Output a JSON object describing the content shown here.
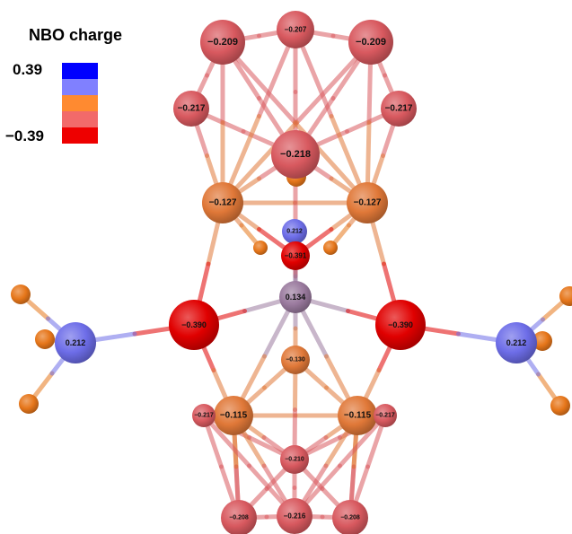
{
  "legend": {
    "title": "NBO charge",
    "max_label": "0.39",
    "min_label": "−0.39",
    "swatches": [
      "#0000ff",
      "#8080ff",
      "#ff8a30",
      "#f26a6a",
      "#ee0000"
    ]
  },
  "colors": {
    "boron": "#d8595f",
    "cage_carbon": "#e07838",
    "oxygen": "#e00000",
    "phosphorus": "#6d6de8",
    "metal": "#9a7a9e",
    "hydrogen": "#e6761a"
  },
  "atoms": [
    {
      "kind": "boron",
      "label": "−0.209"
    },
    {
      "kind": "boron",
      "label": "−0.207"
    },
    {
      "kind": "boron",
      "label": "−0.209"
    },
    {
      "kind": "boron",
      "label": "−0.217"
    },
    {
      "kind": "boron",
      "label": "−0.217"
    },
    {
      "kind": "boron",
      "label": "−0.218"
    },
    {
      "kind": "cage_carbon",
      "label": "−0.127"
    },
    {
      "kind": "cage_carbon",
      "label": "−0.127"
    },
    {
      "kind": "phosphorus",
      "label": "0.212"
    },
    {
      "kind": "oxygen",
      "label": "−0.391"
    },
    {
      "kind": "metal",
      "label": "0.134"
    },
    {
      "kind": "oxygen",
      "label": "−0.390"
    },
    {
      "kind": "oxygen",
      "label": "−0.390"
    },
    {
      "kind": "phosphorus",
      "label": "0.212"
    },
    {
      "kind": "phosphorus",
      "label": "0.212"
    },
    {
      "kind": "cage_carbon",
      "label": "−0.130"
    },
    {
      "kind": "cage_carbon",
      "label": "−0.115"
    },
    {
      "kind": "cage_carbon",
      "label": "−0.115"
    },
    {
      "kind": "boron",
      "label": "−0.217"
    },
    {
      "kind": "boron",
      "label": "−0.217"
    },
    {
      "kind": "boron",
      "label": "−0.210"
    },
    {
      "kind": "boron",
      "label": "−0.208"
    },
    {
      "kind": "boron",
      "label": "−0.216"
    },
    {
      "kind": "boron",
      "label": "−0.208"
    }
  ]
}
